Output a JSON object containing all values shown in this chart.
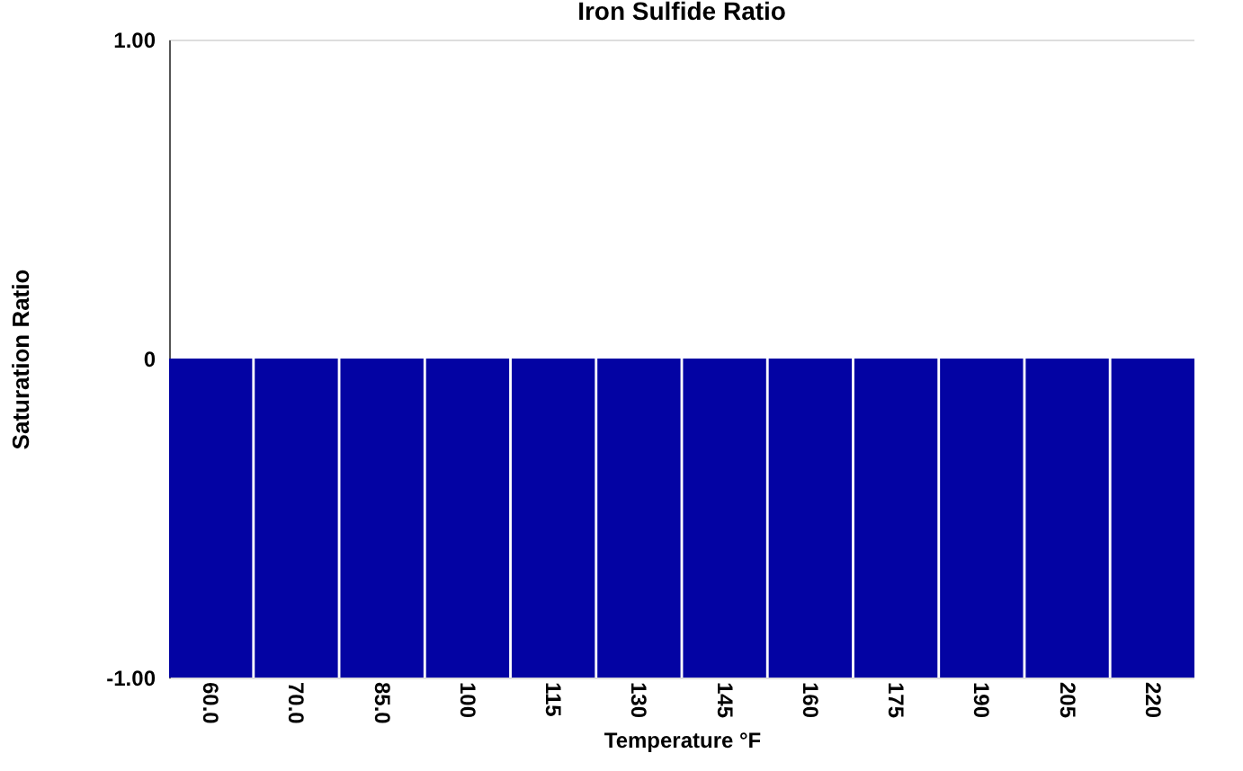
{
  "chart_data": {
    "type": "bar",
    "title": "Iron Sulfide Ratio",
    "xlabel": "Temperature °F",
    "ylabel": "Saturation Ratio",
    "categories": [
      "60.0",
      "70.0",
      "85.0",
      "100",
      "115",
      "130",
      "145",
      "160",
      "175",
      "190",
      "205",
      "220"
    ],
    "values": [
      -1,
      -1,
      -1,
      -1,
      -1,
      -1,
      -1,
      -1,
      -1,
      -1,
      -1,
      -1
    ],
    "color": "#0303a3",
    "ylim": [
      -1,
      1
    ],
    "yticks": [
      {
        "value": -1,
        "label": "-1.00"
      },
      0,
      {
        "value": 1,
        "label": "1.00"
      }
    ],
    "grid": false
  }
}
